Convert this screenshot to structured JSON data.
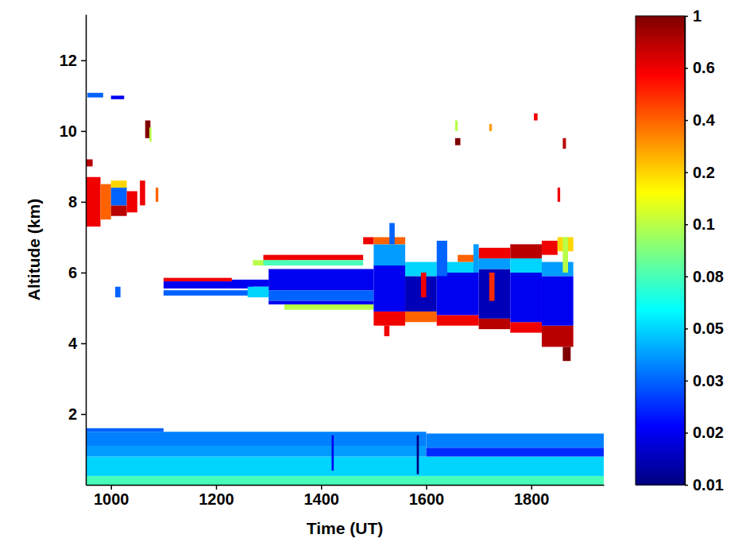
{
  "chart_data": {
    "type": "heatmap",
    "xlabel": "Time (UT)",
    "ylabel": "Altitude (km)",
    "xlim": [
      952,
      1938
    ],
    "xticks": [
      1000,
      1200,
      1400,
      1600,
      1800
    ],
    "ylim": [
      0,
      13.3
    ],
    "yticks": [
      2,
      4,
      6,
      8,
      10,
      12
    ],
    "cells": [
      [
        952,
        1938,
        0,
        0.25,
        0.08
      ],
      [
        952,
        1938,
        0.25,
        0.8,
        0.05
      ],
      [
        952,
        1600,
        0.8,
        1.1,
        0.04
      ],
      [
        1600,
        1938,
        0.8,
        1.05,
        0.025
      ],
      [
        952,
        1600,
        1.1,
        1.5,
        0.035
      ],
      [
        1600,
        1938,
        1.05,
        1.45,
        0.035
      ],
      [
        952,
        1100,
        1.5,
        1.6,
        0.03
      ],
      [
        1420,
        1424,
        0.4,
        1.4,
        0.02
      ],
      [
        1582,
        1586,
        0.3,
        1.4,
        0.01
      ],
      [
        952,
        980,
        7.3,
        8.7,
        0.6
      ],
      [
        980,
        1000,
        7.5,
        8.5,
        0.4
      ],
      [
        1000,
        1030,
        7.6,
        7.9,
        0.8
      ],
      [
        1000,
        1030,
        7.9,
        8.4,
        0.03
      ],
      [
        1030,
        1050,
        7.7,
        8.3,
        0.6
      ],
      [
        1000,
        1030,
        8.4,
        8.6,
        0.2
      ],
      [
        952,
        965,
        9.0,
        9.2,
        0.8
      ],
      [
        1065,
        1075,
        9.8,
        10.3,
        1
      ],
      [
        1073,
        1077,
        9.7,
        10.1,
        0.1
      ],
      [
        955,
        985,
        10.95,
        11.08,
        0.03
      ],
      [
        1000,
        1025,
        10.9,
        11.0,
        0.02
      ],
      [
        1008,
        1018,
        5.3,
        5.6,
        0.03
      ],
      [
        1055,
        1065,
        7.9,
        8.6,
        0.6
      ],
      [
        1085,
        1090,
        8.0,
        8.4,
        0.4
      ],
      [
        1100,
        1230,
        5.75,
        5.85,
        0.6
      ],
      [
        1100,
        1270,
        5.55,
        5.75,
        0.02
      ],
      [
        1100,
        1270,
        5.35,
        5.5,
        0.03
      ],
      [
        1230,
        1300,
        5.6,
        5.8,
        0.02
      ],
      [
        1270,
        1330,
        6.2,
        6.35,
        0.1
      ],
      [
        1290,
        1480,
        6.35,
        6.5,
        0.6
      ],
      [
        1290,
        1480,
        6.2,
        6.35,
        0.08
      ],
      [
        1300,
        1500,
        5.5,
        6.1,
        0.02
      ],
      [
        1300,
        1500,
        5.2,
        5.5,
        0.03
      ],
      [
        1330,
        1500,
        4.95,
        5.1,
        0.1
      ],
      [
        1300,
        1500,
        5.1,
        5.2,
        0.02
      ],
      [
        1480,
        1500,
        6.8,
        7.0,
        0.6
      ],
      [
        1260,
        1300,
        5.3,
        5.6,
        0.05
      ],
      [
        1500,
        1560,
        4.5,
        4.9,
        0.6
      ],
      [
        1560,
        1620,
        4.6,
        4.9,
        0.4
      ],
      [
        1620,
        1700,
        4.5,
        4.8,
        0.6
      ],
      [
        1700,
        1760,
        4.4,
        4.7,
        0.8
      ],
      [
        1760,
        1820,
        4.3,
        4.6,
        0.6
      ],
      [
        1820,
        1880,
        3.9,
        4.5,
        0.8
      ],
      [
        1860,
        1875,
        3.5,
        3.9,
        1
      ],
      [
        1520,
        1530,
        4.2,
        4.5,
        0.6
      ],
      [
        1500,
        1560,
        4.9,
        6.2,
        0.02
      ],
      [
        1560,
        1620,
        4.9,
        5.9,
        0.015
      ],
      [
        1620,
        1700,
        4.8,
        6.0,
        0.02
      ],
      [
        1700,
        1760,
        4.7,
        6.1,
        0.015
      ],
      [
        1760,
        1820,
        4.6,
        6.0,
        0.02
      ],
      [
        1820,
        1880,
        4.5,
        5.9,
        0.02
      ],
      [
        1500,
        1560,
        6.2,
        6.8,
        0.04
      ],
      [
        1560,
        1620,
        5.9,
        6.3,
        0.05
      ],
      [
        1620,
        1700,
        6.0,
        6.3,
        0.05
      ],
      [
        1700,
        1760,
        6.1,
        6.4,
        0.04
      ],
      [
        1760,
        1820,
        6.0,
        6.4,
        0.05
      ],
      [
        1820,
        1880,
        5.9,
        6.3,
        0.04
      ],
      [
        1500,
        1560,
        6.8,
        7.0,
        0.4
      ],
      [
        1530,
        1540,
        6.8,
        7.4,
        0.03
      ],
      [
        1700,
        1760,
        6.4,
        6.7,
        0.6
      ],
      [
        1760,
        1820,
        6.4,
        6.8,
        0.8
      ],
      [
        1820,
        1850,
        6.5,
        6.9,
        0.6
      ],
      [
        1660,
        1700,
        6.3,
        6.5,
        0.4
      ],
      [
        1850,
        1880,
        6.6,
        7.0,
        0.2
      ],
      [
        1620,
        1640,
        5.9,
        6.9,
        0.03
      ],
      [
        1690,
        1700,
        6.0,
        6.8,
        0.04
      ],
      [
        1860,
        1870,
        6.0,
        7.0,
        0.1
      ],
      [
        1655,
        1665,
        9.6,
        9.8,
        1
      ],
      [
        1655,
        1660,
        10.0,
        10.3,
        0.1
      ],
      [
        1805,
        1812,
        10.3,
        10.5,
        0.6
      ],
      [
        1860,
        1866,
        9.5,
        9.8,
        0.8
      ],
      [
        1850,
        1855,
        8.0,
        8.4,
        0.6
      ],
      [
        1720,
        1725,
        10.0,
        10.2,
        0.3
      ],
      [
        1590,
        1600,
        5.3,
        6.0,
        0.6
      ],
      [
        1720,
        1730,
        5.2,
        6.0,
        0.5
      ]
    ],
    "colorbar": {
      "lim": [
        0.01,
        1
      ],
      "ticks": [
        0.01,
        0.02,
        0.03,
        0.05,
        0.08,
        0.1,
        0.2,
        0.4,
        0.6,
        1
      ]
    }
  }
}
